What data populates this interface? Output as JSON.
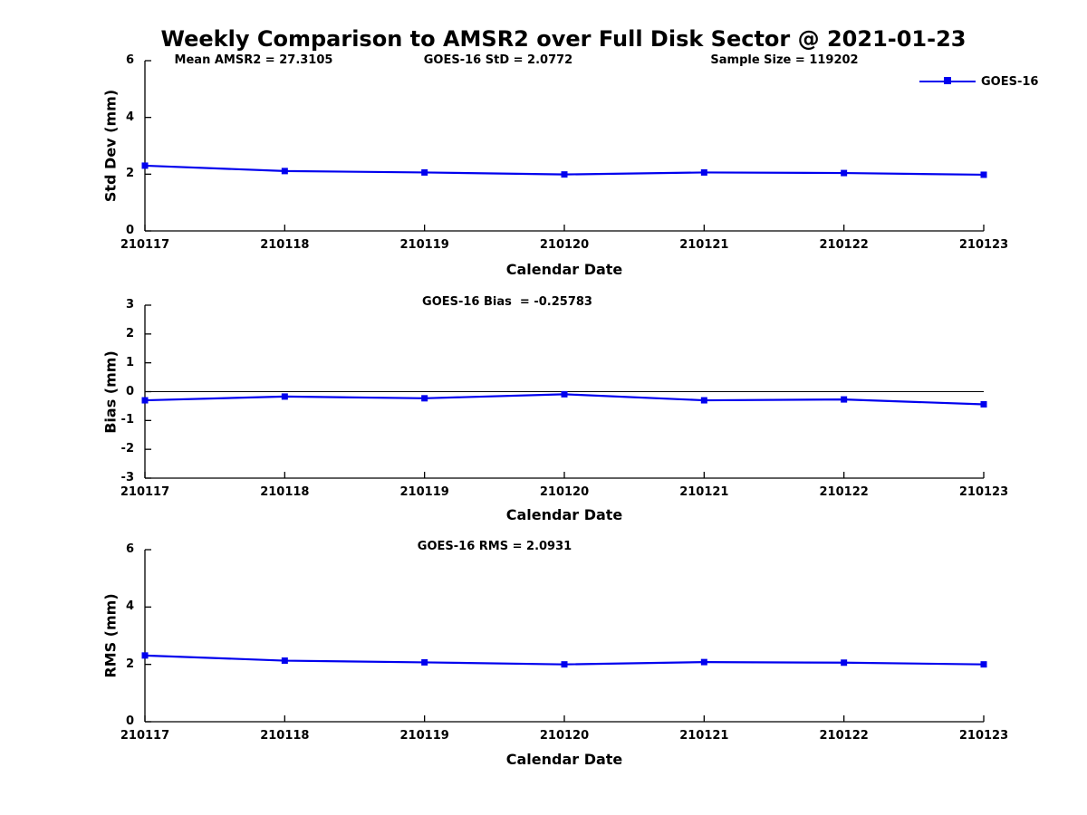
{
  "figure": {
    "title": "Weekly Comparison to AMSR2 over Full Disk Sector @ 2021-01-23",
    "annotations": [
      {
        "label": "Mean AMSR2 = 27.3105"
      },
      {
        "label": "GOES-16 StD = 2.0772"
      },
      {
        "label": "Sample Size = 119202"
      }
    ]
  },
  "legend": {
    "label": "GOES-16",
    "position": "top-right"
  },
  "colors": {
    "line": "#0000ee",
    "axis": "#000000",
    "text": "#000000",
    "background": "#ffffff"
  },
  "chart_data": [
    {
      "type": "line",
      "id": "std-dev",
      "title": "",
      "ylabel": "Std Dev (mm)",
      "xlabel": "Calendar Date",
      "ylim": [
        0,
        6
      ],
      "yticks": [
        0,
        2,
        4,
        6
      ],
      "grid": false,
      "zero_line": false,
      "categories": [
        "210117",
        "210118",
        "210119",
        "210120",
        "210121",
        "210122",
        "210123"
      ],
      "series": [
        {
          "name": "GOES-16",
          "marker": "square",
          "values": [
            2.3,
            2.11,
            2.06,
            1.99,
            2.06,
            2.04,
            1.98
          ]
        }
      ]
    },
    {
      "type": "line",
      "id": "bias",
      "title": "GOES-16 Bias  = -0.25783",
      "ylabel": "Bias (mm)",
      "xlabel": "Calendar Date",
      "ylim": [
        -3,
        3
      ],
      "yticks": [
        3,
        2,
        1,
        0,
        -1,
        -2,
        -3
      ],
      "grid": false,
      "zero_line": true,
      "categories": [
        "210117",
        "210118",
        "210119",
        "210120",
        "210121",
        "210122",
        "210123"
      ],
      "series": [
        {
          "name": "GOES-16",
          "marker": "square",
          "values": [
            -0.3,
            -0.17,
            -0.23,
            -0.09,
            -0.3,
            -0.27,
            -0.44
          ]
        }
      ]
    },
    {
      "type": "line",
      "id": "rms",
      "title": "GOES-16 RMS = 2.0931",
      "ylabel": "RMS (mm)",
      "xlabel": "Calendar Date",
      "ylim": [
        0,
        6
      ],
      "yticks": [
        0,
        2,
        4,
        6
      ],
      "grid": false,
      "zero_line": false,
      "categories": [
        "210117",
        "210118",
        "210119",
        "210120",
        "210121",
        "210122",
        "210123"
      ],
      "series": [
        {
          "name": "GOES-16",
          "marker": "square",
          "values": [
            2.31,
            2.13,
            2.07,
            2.0,
            2.08,
            2.06,
            2.0
          ]
        }
      ]
    }
  ]
}
